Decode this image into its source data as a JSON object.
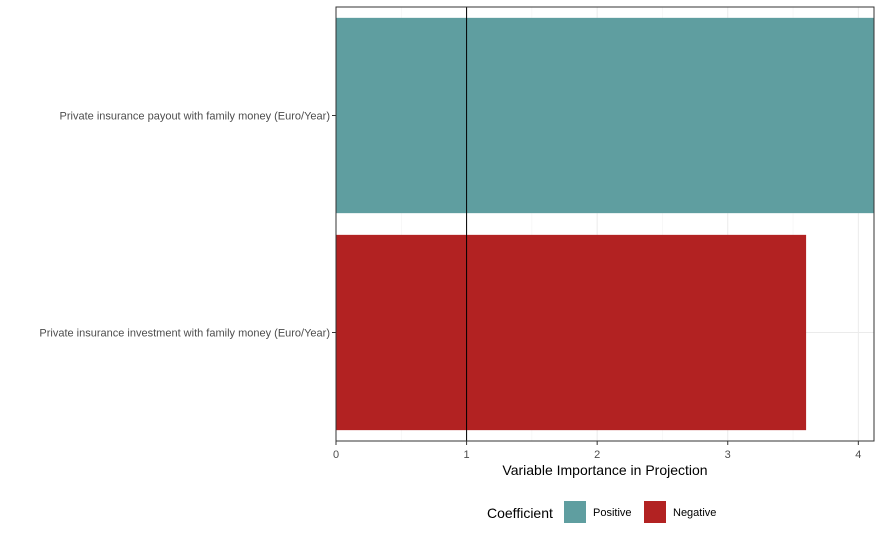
{
  "chart_data": {
    "type": "bar",
    "orientation": "horizontal",
    "categories": [
      "Private insurance payout with family money (Euro/Year)",
      "Private insurance investment with family money (Euro/Year)"
    ],
    "values": [
      4.12,
      3.6
    ],
    "bar_groups": [
      "Positive",
      "Negative"
    ],
    "xlabel": "Variable Importance in Projection",
    "ylabel": "",
    "xlim": [
      0,
      4.12
    ],
    "xticks": [
      "0",
      "1",
      "2",
      "3",
      "4"
    ],
    "reference_line": 1,
    "grid": true,
    "legend": {
      "title": "Coefficient",
      "position": "bottom",
      "entries": [
        {
          "label": "Positive",
          "color": "#5f9ea0"
        },
        {
          "label": "Negative",
          "color": "#b22222"
        }
      ]
    }
  }
}
